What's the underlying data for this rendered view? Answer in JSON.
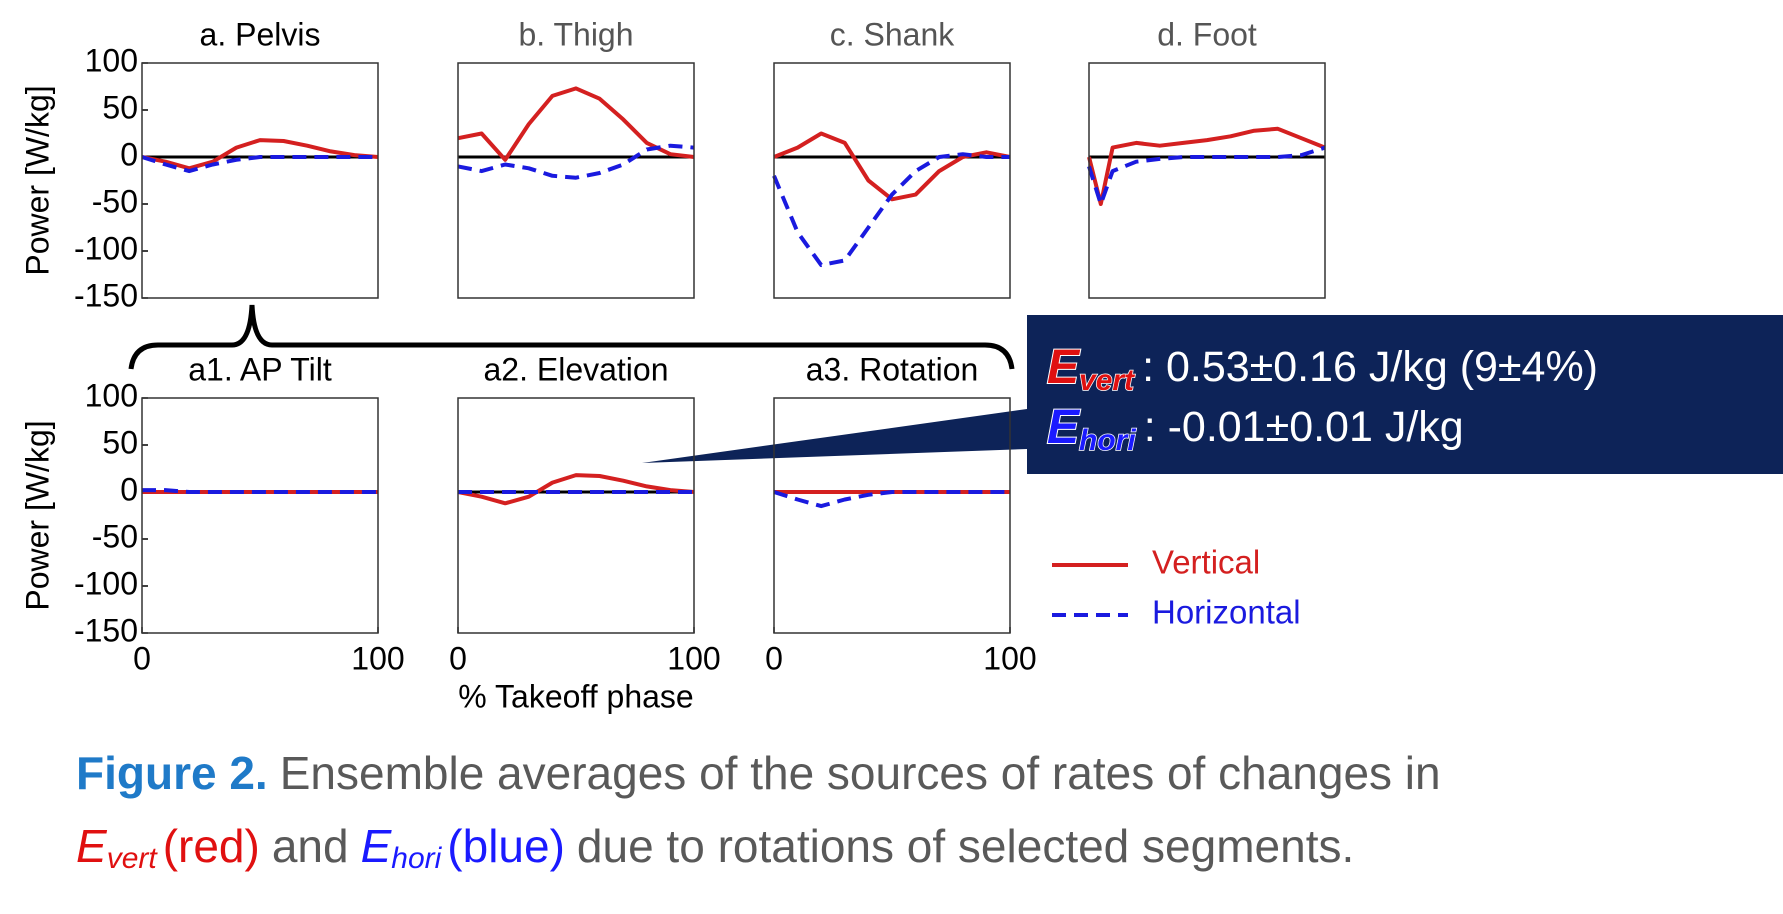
{
  "chart_data": [
    {
      "type": "line",
      "title": "a. Pelvis",
      "title_color": "#000000",
      "ylabel": "Power [W/kg]",
      "x": [
        0,
        10,
        20,
        30,
        40,
        50,
        60,
        70,
        80,
        90,
        100
      ],
      "xlim": [
        0,
        100
      ],
      "ylim": [
        -150,
        100
      ],
      "yticks": [
        100,
        50,
        0,
        -50,
        -100,
        -150
      ],
      "series": [
        {
          "color": "#d42020",
          "line_style": "solid",
          "values": [
            0,
            -5,
            -12,
            -5,
            10,
            18,
            17,
            12,
            6,
            2,
            0
          ]
        },
        {
          "color": "#1a1adf",
          "line_style": "dashed",
          "values": [
            0,
            -8,
            -15,
            -8,
            -3,
            0,
            0,
            0,
            0,
            0,
            0
          ]
        }
      ]
    },
    {
      "type": "line",
      "title": "b. Thigh",
      "title_color": "#555555",
      "x": [
        0,
        10,
        20,
        30,
        40,
        50,
        60,
        70,
        80,
        90,
        100
      ],
      "xlim": [
        0,
        100
      ],
      "ylim": [
        -150,
        100
      ],
      "series": [
        {
          "color": "#d42020",
          "line_style": "solid",
          "values": [
            20,
            25,
            -3,
            35,
            65,
            73,
            62,
            40,
            15,
            3,
            0
          ]
        },
        {
          "color": "#1a1adf",
          "line_style": "dashed",
          "values": [
            -10,
            -15,
            -8,
            -12,
            -20,
            -22,
            -17,
            -8,
            8,
            12,
            10
          ]
        }
      ]
    },
    {
      "type": "line",
      "title": "c. Shank",
      "title_color": "#555555",
      "x": [
        0,
        10,
        20,
        30,
        40,
        50,
        60,
        70,
        80,
        90,
        100
      ],
      "xlim": [
        0,
        100
      ],
      "ylim": [
        -150,
        100
      ],
      "series": [
        {
          "color": "#d42020",
          "line_style": "solid",
          "values": [
            0,
            10,
            25,
            15,
            -25,
            -45,
            -40,
            -15,
            0,
            5,
            0
          ]
        },
        {
          "color": "#1a1adf",
          "line_style": "dashed",
          "values": [
            -20,
            -80,
            -115,
            -110,
            -75,
            -40,
            -15,
            0,
            3,
            0,
            0
          ]
        }
      ]
    },
    {
      "type": "line",
      "title": "d. Foot",
      "title_color": "#555555",
      "x": [
        0,
        5,
        10,
        20,
        30,
        40,
        50,
        60,
        70,
        80,
        90,
        100
      ],
      "xlim": [
        0,
        100
      ],
      "ylim": [
        -150,
        100
      ],
      "series": [
        {
          "color": "#d42020",
          "line_style": "solid",
          "values": [
            0,
            -50,
            10,
            15,
            12,
            15,
            18,
            22,
            28,
            30,
            20,
            10
          ]
        },
        {
          "color": "#1a1adf",
          "line_style": "dashed",
          "values": [
            -10,
            -50,
            -15,
            -5,
            -2,
            0,
            0,
            0,
            0,
            0,
            2,
            10
          ]
        }
      ]
    },
    {
      "type": "line",
      "title": "a1. AP Tilt",
      "title_color": "#000000",
      "ylabel": "Power [W/kg]",
      "x": [
        0,
        10,
        20,
        30,
        40,
        50,
        60,
        70,
        80,
        90,
        100
      ],
      "xlim": [
        0,
        100
      ],
      "xticks": [
        0,
        100
      ],
      "ylim": [
        -150,
        100
      ],
      "yticks": [
        100,
        50,
        0,
        -50,
        -100,
        -150
      ],
      "series": [
        {
          "color": "#d42020",
          "line_style": "solid",
          "values": [
            0,
            0,
            0,
            0,
            0,
            0,
            0,
            0,
            0,
            0,
            0
          ]
        },
        {
          "color": "#1a1adf",
          "line_style": "dashed",
          "values": [
            2,
            2,
            0,
            0,
            0,
            0,
            0,
            0,
            0,
            0,
            0
          ]
        }
      ]
    },
    {
      "type": "line",
      "title": "a2. Elevation",
      "title_color": "#000000",
      "xlabel": "% Takeoff phase",
      "x": [
        0,
        10,
        20,
        30,
        40,
        50,
        60,
        70,
        80,
        90,
        100
      ],
      "xlim": [
        0,
        100
      ],
      "xticks": [
        0,
        100
      ],
      "ylim": [
        -150,
        100
      ],
      "series": [
        {
          "color": "#d42020",
          "line_style": "solid",
          "values": [
            0,
            -5,
            -12,
            -5,
            10,
            18,
            17,
            12,
            6,
            2,
            0
          ]
        },
        {
          "color": "#1a1adf",
          "line_style": "dashed",
          "values": [
            0,
            0,
            0,
            0,
            0,
            0,
            0,
            0,
            0,
            0,
            0
          ]
        }
      ]
    },
    {
      "type": "line",
      "title": "a3. Rotation",
      "title_color": "#000000",
      "x": [
        0,
        10,
        20,
        30,
        40,
        50,
        60,
        70,
        80,
        90,
        100
      ],
      "xlim": [
        0,
        100
      ],
      "xticks": [
        0,
        100
      ],
      "ylim": [
        -150,
        100
      ],
      "series": [
        {
          "name": "Vertical",
          "color": "#d42020",
          "line_style": "solid",
          "values": [
            0,
            0,
            0,
            0,
            0,
            0,
            0,
            0,
            0,
            0,
            0
          ]
        },
        {
          "name": "Horizontal",
          "color": "#1a1adf",
          "line_style": "dashed",
          "values": [
            0,
            -8,
            -15,
            -8,
            -3,
            0,
            0,
            0,
            0,
            0,
            0
          ]
        }
      ]
    }
  ],
  "callout": {
    "lines": [
      {
        "symbol": "E",
        "sub": "vert",
        "color": "#e01010",
        "text": ": 0.53±0.16  J/kg (9±4%)"
      },
      {
        "symbol": "E",
        "sub": "hori",
        "color": "#1a1aff",
        "text": ": -0.01±0.01  J/kg"
      }
    ]
  },
  "caption": {
    "label": "Figure 2.",
    "line1": "Ensemble averages of the sources of rates of changes in",
    "vert": {
      "symbol": "E",
      "sub": "vert",
      "text": "(red)"
    },
    "and": "and",
    "hori": {
      "symbol": "E",
      "sub": "hori",
      "text": "(blue)"
    },
    "rest": "due to rotations of selected segments."
  }
}
